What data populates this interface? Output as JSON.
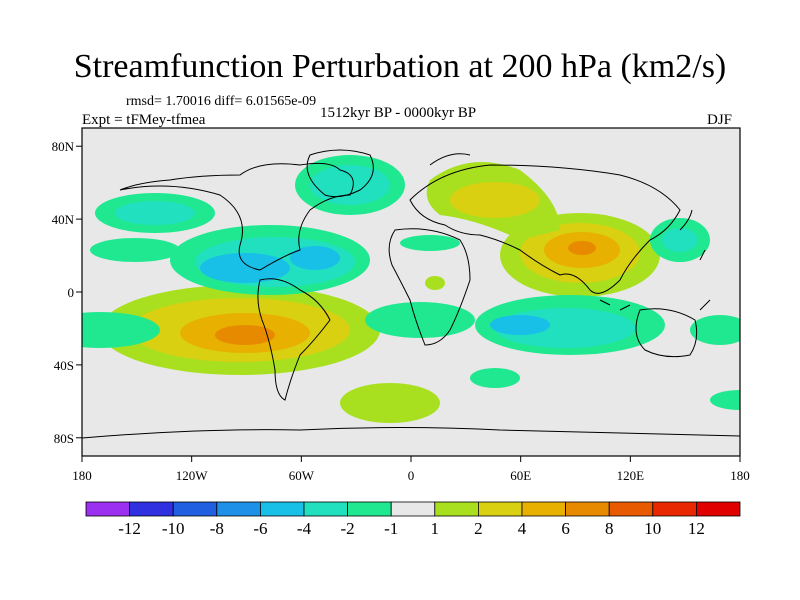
{
  "title": "Streamfunction Perturbation at 200 hPa (km2/s)",
  "stats": "rmsd= 1.70016 diff= 6.01565e-09",
  "experiment": "Expt = tFMey-tfmea",
  "period": "1512kyr BP - 0000kyr BP",
  "season": "DJF",
  "chart_data": {
    "type": "heatmap",
    "projection": "cylindrical-equidistant",
    "lon_range": [
      -180,
      180
    ],
    "lat_range": [
      -90,
      90
    ],
    "lon_ticks": [
      "180",
      "120W",
      "60W",
      "0",
      "60E",
      "120E",
      "180"
    ],
    "lat_ticks": [
      "80N",
      "40N",
      "0",
      "40S",
      "80S"
    ],
    "colorbar": {
      "levels": [
        "-12",
        "-10",
        "-8",
        "-6",
        "-4",
        "-2",
        "-1",
        "1",
        "2",
        "4",
        "6",
        "8",
        "10",
        "12"
      ],
      "colors": [
        "#9b30f0",
        "#3030e0",
        "#1f5fe0",
        "#1e90e8",
        "#18c0e8",
        "#20e0c0",
        "#20e890",
        "#e8e8e8",
        "#a8e020",
        "#d8d010",
        "#e8b000",
        "#e88a00",
        "#e85a00",
        "#e82800",
        "#e00000"
      ]
    },
    "features": [
      {
        "name": "north-atlantic-low",
        "lon": -55,
        "lat": 20,
        "value": -4
      },
      {
        "name": "greenland-low",
        "lon": -35,
        "lat": 68,
        "value": -2
      },
      {
        "name": "north-pacific-low",
        "lon": -155,
        "lat": 43,
        "value": -2
      },
      {
        "name": "south-america-high",
        "lon": -90,
        "lat": -22,
        "value": 8
      },
      {
        "name": "south-asia-high",
        "lon": 95,
        "lat": 28,
        "value": 8
      },
      {
        "name": "eurasia-high",
        "lon": 40,
        "lat": 62,
        "value": 4
      },
      {
        "name": "indian-ocean-low",
        "lon": 70,
        "lat": -15,
        "value": -4
      },
      {
        "name": "west-pacific-low",
        "lon": 140,
        "lat": 33,
        "value": -2
      },
      {
        "name": "south-atlantic-low",
        "lon": -25,
        "lat": -15,
        "value": -1
      },
      {
        "name": "southern-ocean-high",
        "lon": -35,
        "lat": -60,
        "value": 2
      }
    ]
  }
}
